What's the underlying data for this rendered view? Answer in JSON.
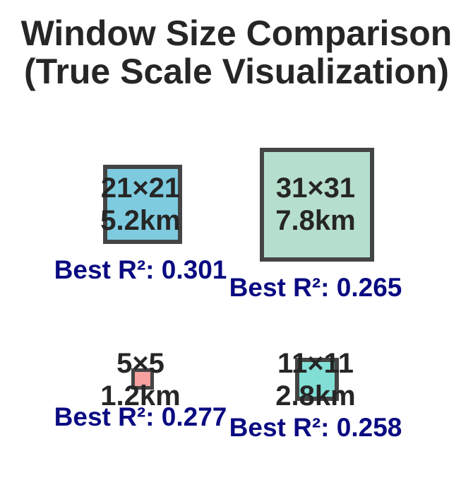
{
  "title": {
    "line1": "Window Size Comparison",
    "line2": "(True Scale Visualization)"
  },
  "windows": [
    {
      "size": "21×21",
      "distance": "5.2km",
      "r2": "Best R²: 0.301",
      "fill": "#7ecbe0"
    },
    {
      "size": "31×31",
      "distance": "7.8km",
      "r2": "Best R²: 0.265",
      "fill": "#b5dfcc"
    },
    {
      "size": "5×5",
      "distance": "1.2km",
      "r2": "Best R²: 0.277",
      "fill": "#f7a1a1"
    },
    {
      "size": "11×11",
      "distance": "2.8km",
      "r2": "Best R²: 0.258",
      "fill": "#82dfd6"
    }
  ]
}
